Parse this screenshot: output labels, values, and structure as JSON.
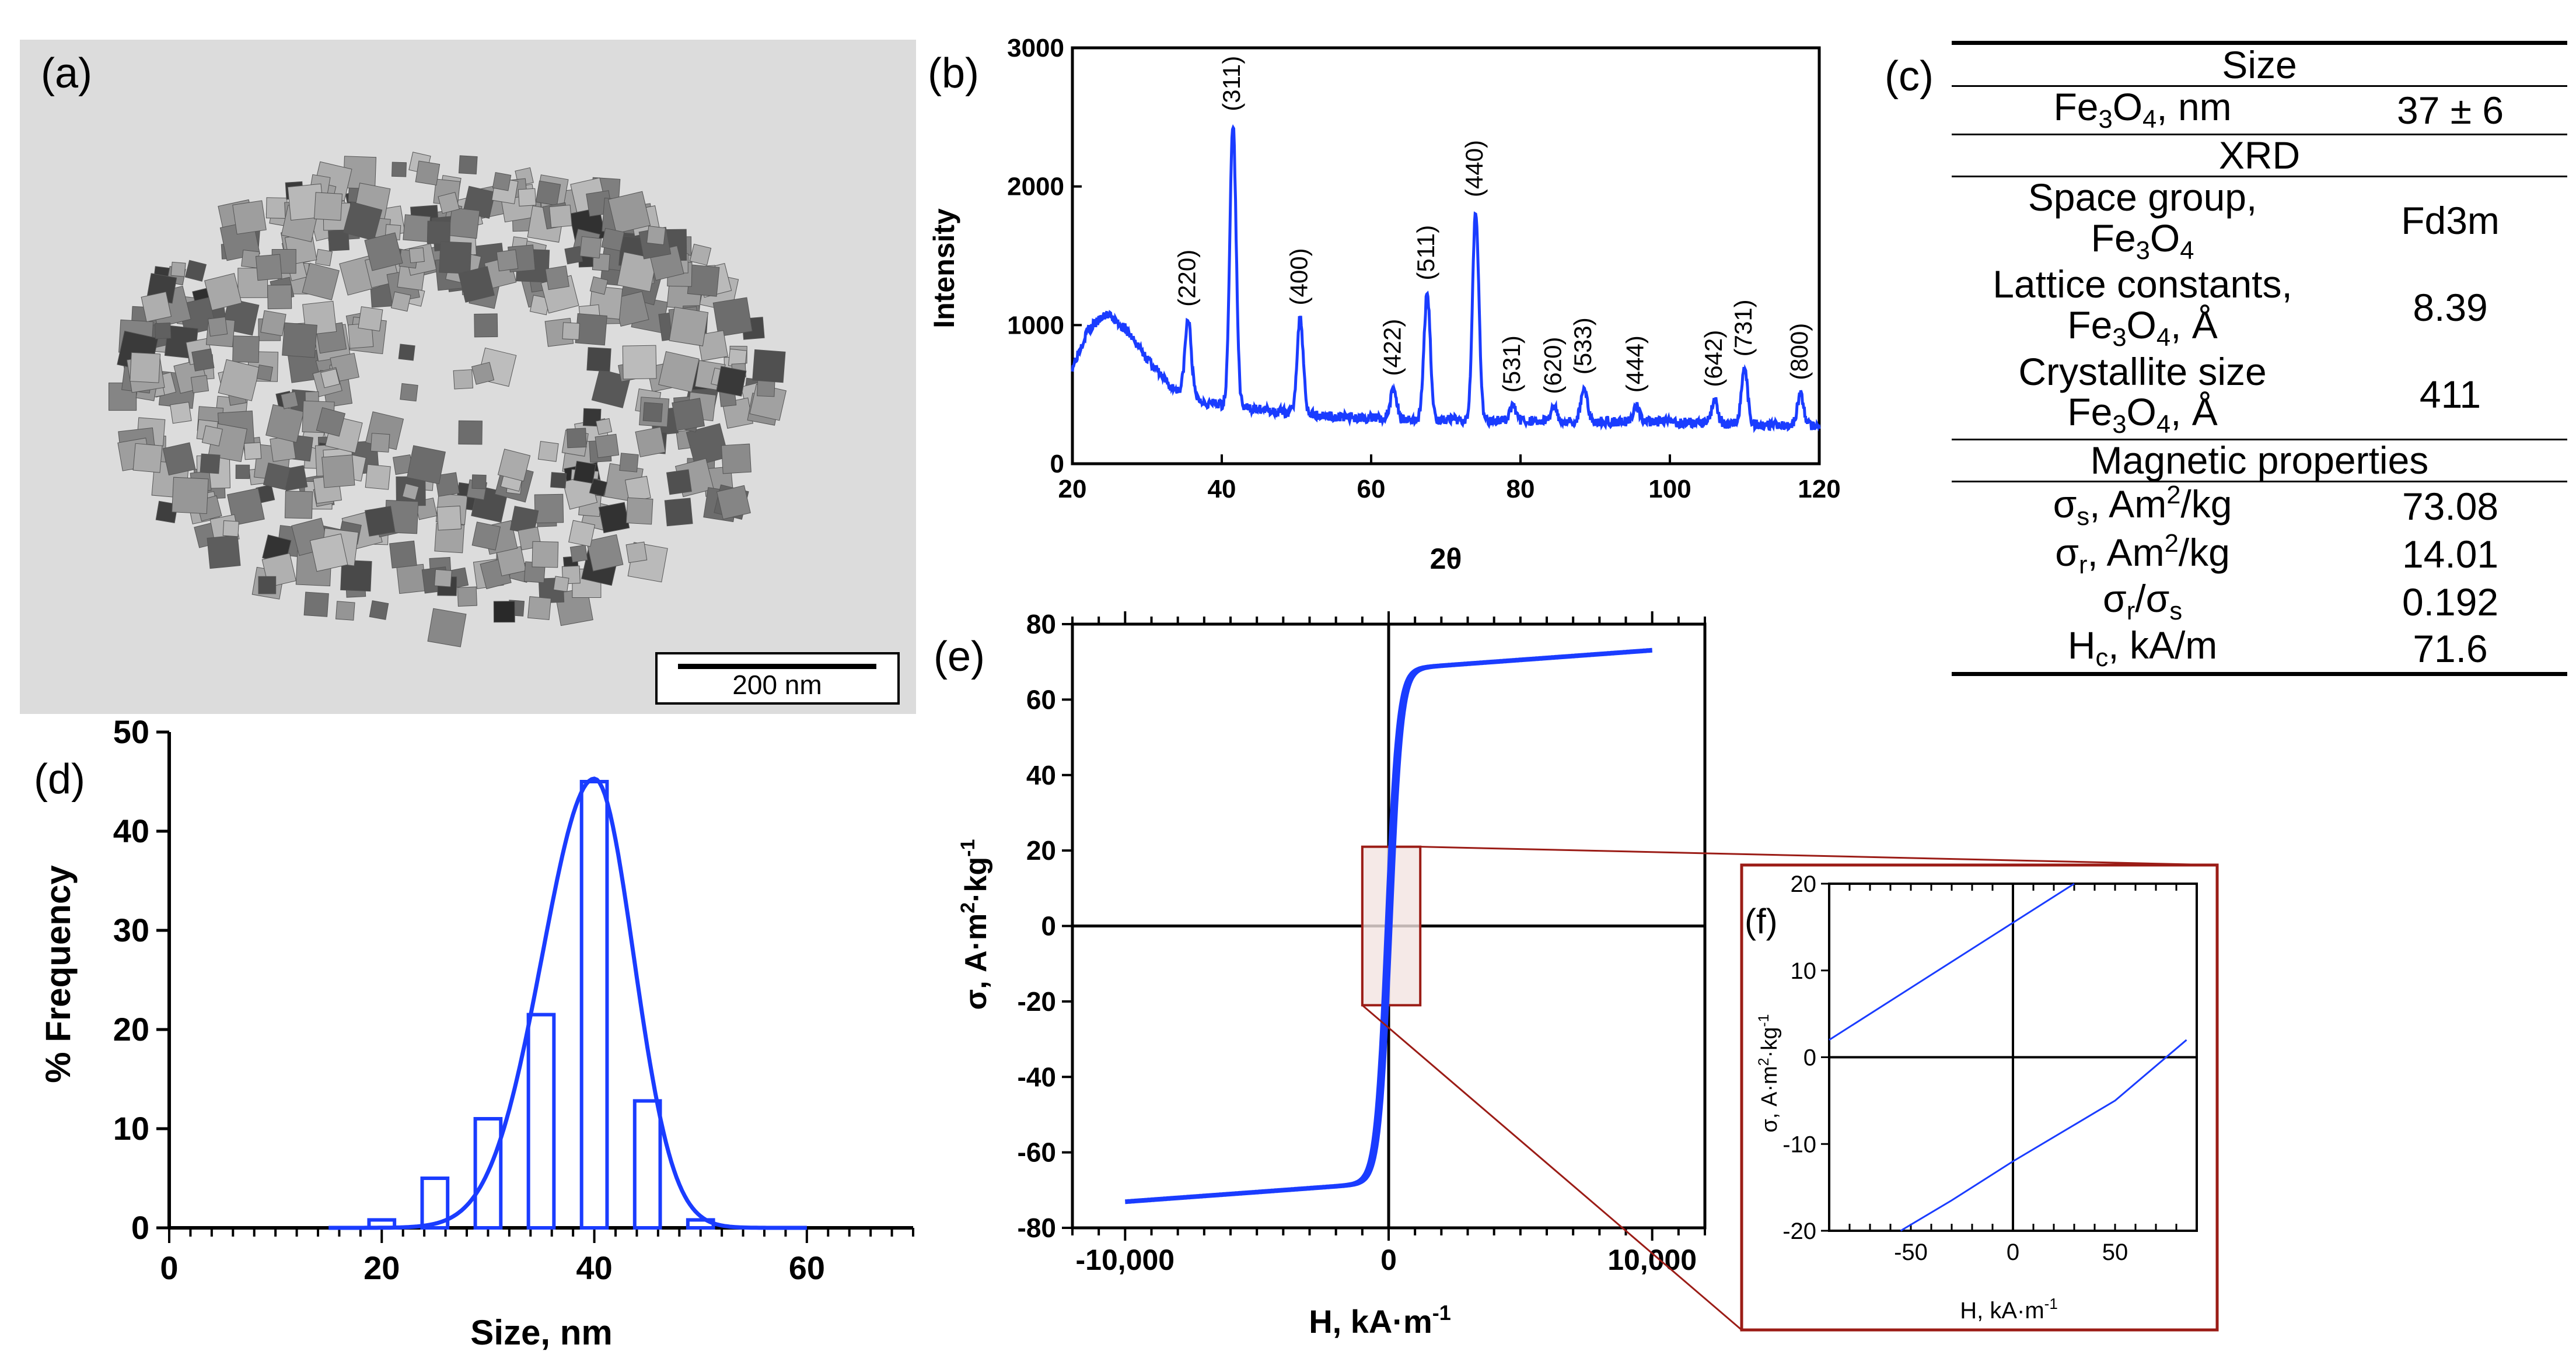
{
  "panels": {
    "a": {
      "label": "(a)",
      "scale_bar": "200 nm"
    },
    "b": {
      "label": "(b)"
    },
    "c": {
      "label": "(c)"
    },
    "d": {
      "label": "(d)"
    },
    "e": {
      "label": "(e)"
    },
    "f": {
      "label": "(f)"
    }
  },
  "table": {
    "size_header": "Size",
    "row_size_label_pre": "Fe",
    "row_size_label_sub1": "3",
    "row_size_label_mid": "O",
    "row_size_label_sub2": "4",
    "row_size_label_post": ", nm",
    "row_size_value": "37 ± 6",
    "xrd_header": "XRD",
    "space_group_label": "Space group,",
    "space_group_value": "Fd3m",
    "lattice_label": "Lattice constants,",
    "lattice_unit": ", Å",
    "lattice_value": "8.39",
    "crystallite_label": "Crystallite size",
    "crystallite_unit": ", Å",
    "crystallite_value": "411",
    "magnetic_header": "Magnetic properties",
    "sigma_s_pre": "σ",
    "sigma_s_sub": "s",
    "sigma_s_unit": ", Am",
    "sigma_s_sup": "2",
    "sigma_s_unit2": "/kg",
    "sigma_s_value": "73.08",
    "sigma_r_pre": "σ",
    "sigma_r_sub": "r",
    "sigma_r_unit": ", Am",
    "sigma_r_sup": "2",
    "sigma_r_unit2": "/kg",
    "sigma_r_value": "14.01",
    "ratio_pre": "σ",
    "ratio_sub1": "r",
    "ratio_mid": "/σ",
    "ratio_sub2": "s",
    "ratio_value": "0.192",
    "hc_pre": "H",
    "hc_sub": "c",
    "hc_unit": ", kA/m",
    "hc_value": "71.6"
  },
  "chart_data": [
    {
      "id": "b",
      "type": "line",
      "title": "",
      "xlabel": "2θ",
      "ylabel": "Intensity",
      "xlim": [
        20,
        120
      ],
      "ylim": [
        0,
        3000
      ],
      "xticks": [
        20,
        40,
        60,
        80,
        100,
        120
      ],
      "yticks": [
        0,
        1000,
        2000,
        3000
      ],
      "color": "#1a3cff",
      "baseline_points": [
        [
          20,
          700
        ],
        [
          22,
          960
        ],
        [
          24.5,
          1080
        ],
        [
          27,
          980
        ],
        [
          30,
          760
        ],
        [
          33,
          560
        ],
        [
          38,
          440
        ],
        [
          45,
          390
        ],
        [
          55,
          340
        ],
        [
          65,
          320
        ],
        [
          80,
          310
        ],
        [
          100,
          300
        ],
        [
          120,
          270
        ]
      ],
      "peaks": [
        {
          "x": 35.5,
          "y": 1040,
          "label": "(220)"
        },
        {
          "x": 41.5,
          "y": 2450,
          "label": "(311)"
        },
        {
          "x": 50.5,
          "y": 1050,
          "label": "(400)"
        },
        {
          "x": 63.0,
          "y": 540,
          "label": "(422)"
        },
        {
          "x": 67.5,
          "y": 1230,
          "label": "(511)"
        },
        {
          "x": 74.0,
          "y": 1830,
          "label": "(440)"
        },
        {
          "x": 79.0,
          "y": 420,
          "label": "(531)"
        },
        {
          "x": 84.5,
          "y": 410,
          "label": "(620)"
        },
        {
          "x": 88.5,
          "y": 550,
          "label": "(533)"
        },
        {
          "x": 95.5,
          "y": 420,
          "label": "(444)"
        },
        {
          "x": 106.0,
          "y": 460,
          "label": "(642)"
        },
        {
          "x": 110.0,
          "y": 680,
          "label": "(731)"
        },
        {
          "x": 117.5,
          "y": 510,
          "label": "(800)"
        }
      ]
    },
    {
      "id": "d",
      "type": "bar",
      "title": "",
      "xlabel": "Size, nm",
      "ylabel": "% Frequency",
      "xlim": [
        0,
        70
      ],
      "ylim": [
        0,
        50
      ],
      "xticks": [
        0,
        20,
        40,
        60
      ],
      "yticks": [
        0,
        10,
        20,
        30,
        40,
        50
      ],
      "color": "#1a3cff",
      "bars": [
        {
          "x": 20,
          "value": 0.8
        },
        {
          "x": 25,
          "value": 5
        },
        {
          "x": 30,
          "value": 11
        },
        {
          "x": 35,
          "value": 21.5
        },
        {
          "x": 40,
          "value": 45
        },
        {
          "x": 45,
          "value": 12.8
        },
        {
          "x": 50,
          "value": 0.8
        }
      ],
      "fit_curve": {
        "type": "gaussian",
        "mean": 40,
        "peak": 45.3,
        "sigma_left": 4.9,
        "sigma_right": 3.7,
        "x_range": [
          15,
          60
        ]
      }
    },
    {
      "id": "e",
      "type": "line",
      "title": "",
      "xlabel": "H, kA·m-1",
      "ylabel": "σ, A·m2·kg-1",
      "xlim": [
        -12000,
        12000
      ],
      "ylim": [
        -80,
        80
      ],
      "xticks": [
        -10000,
        0,
        10000
      ],
      "xticklabels": [
        "-10,000",
        "0",
        "10,000"
      ],
      "yticks": [
        -80,
        -60,
        -40,
        -20,
        0,
        20,
        40,
        60,
        80
      ],
      "color": "#1a3cff",
      "saturation": 73.08,
      "range": [
        -10000,
        10000
      ],
      "zoom_box": {
        "xmin": -1000,
        "xmax": 1200,
        "ymin": -21,
        "ymax": 21
      }
    },
    {
      "id": "f",
      "type": "line",
      "title": "",
      "xlabel": "H, kA·m-1",
      "ylabel": "σ, A·m2·kg-1",
      "xlim": [
        -90,
        90
      ],
      "ylim": [
        -20,
        20
      ],
      "xticks": [
        -50,
        0,
        50
      ],
      "yticks": [
        -20,
        -10,
        0,
        10,
        20
      ],
      "color": "#1a3cff",
      "series": [
        {
          "name": "upper",
          "x": [
            -90,
            -50,
            0,
            30
          ],
          "y": [
            2,
            8,
            15.5,
            20
          ]
        },
        {
          "name": "lower",
          "x": [
            -55,
            -30,
            0,
            50,
            85
          ],
          "y": [
            -20,
            -16.5,
            -12,
            -5,
            2
          ]
        }
      ]
    }
  ]
}
